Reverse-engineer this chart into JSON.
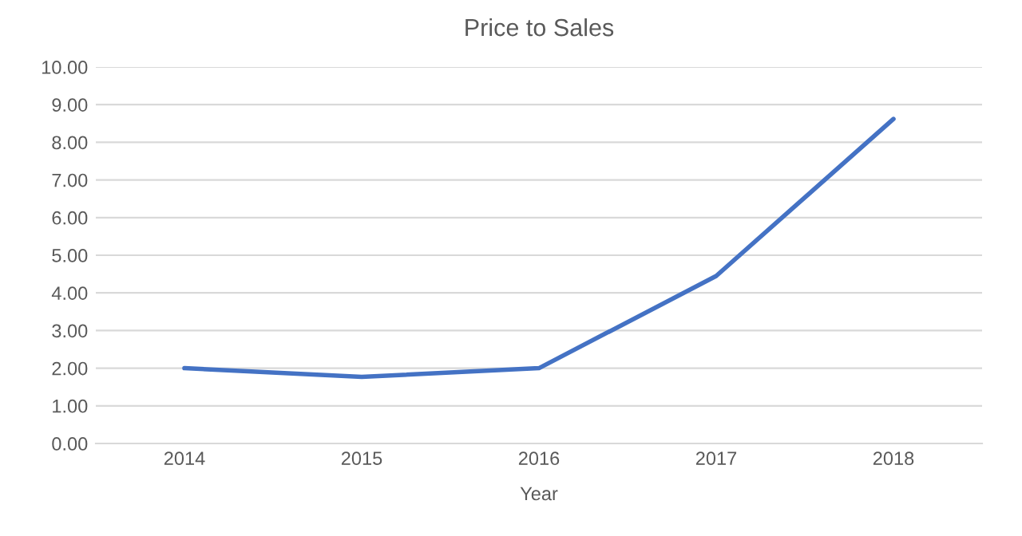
{
  "chart_data": {
    "type": "line",
    "title": "Price to Sales",
    "xlabel": "Year",
    "categories": [
      "2014",
      "2015",
      "2016",
      "2017",
      "2018"
    ],
    "series": [
      {
        "color": "#4472c4",
        "values": [
          2.0,
          1.77,
          2.0,
          4.45,
          8.62
        ]
      }
    ],
    "ylim": [
      0,
      10
    ],
    "yticks": [
      {
        "value": 0,
        "label": "0.00"
      },
      {
        "value": 1,
        "label": "1.00"
      },
      {
        "value": 2,
        "label": "2.00"
      },
      {
        "value": 3,
        "label": "3.00"
      },
      {
        "value": 4,
        "label": "4.00"
      },
      {
        "value": 5,
        "label": "5.00"
      },
      {
        "value": 6,
        "label": "6.00"
      },
      {
        "value": 7,
        "label": "7.00"
      },
      {
        "value": 8,
        "label": "8.00"
      },
      {
        "value": 9,
        "label": "9.00"
      },
      {
        "value": 10,
        "label": "10.00"
      }
    ],
    "grid": "y",
    "marker": "none",
    "line_style": "solid"
  }
}
